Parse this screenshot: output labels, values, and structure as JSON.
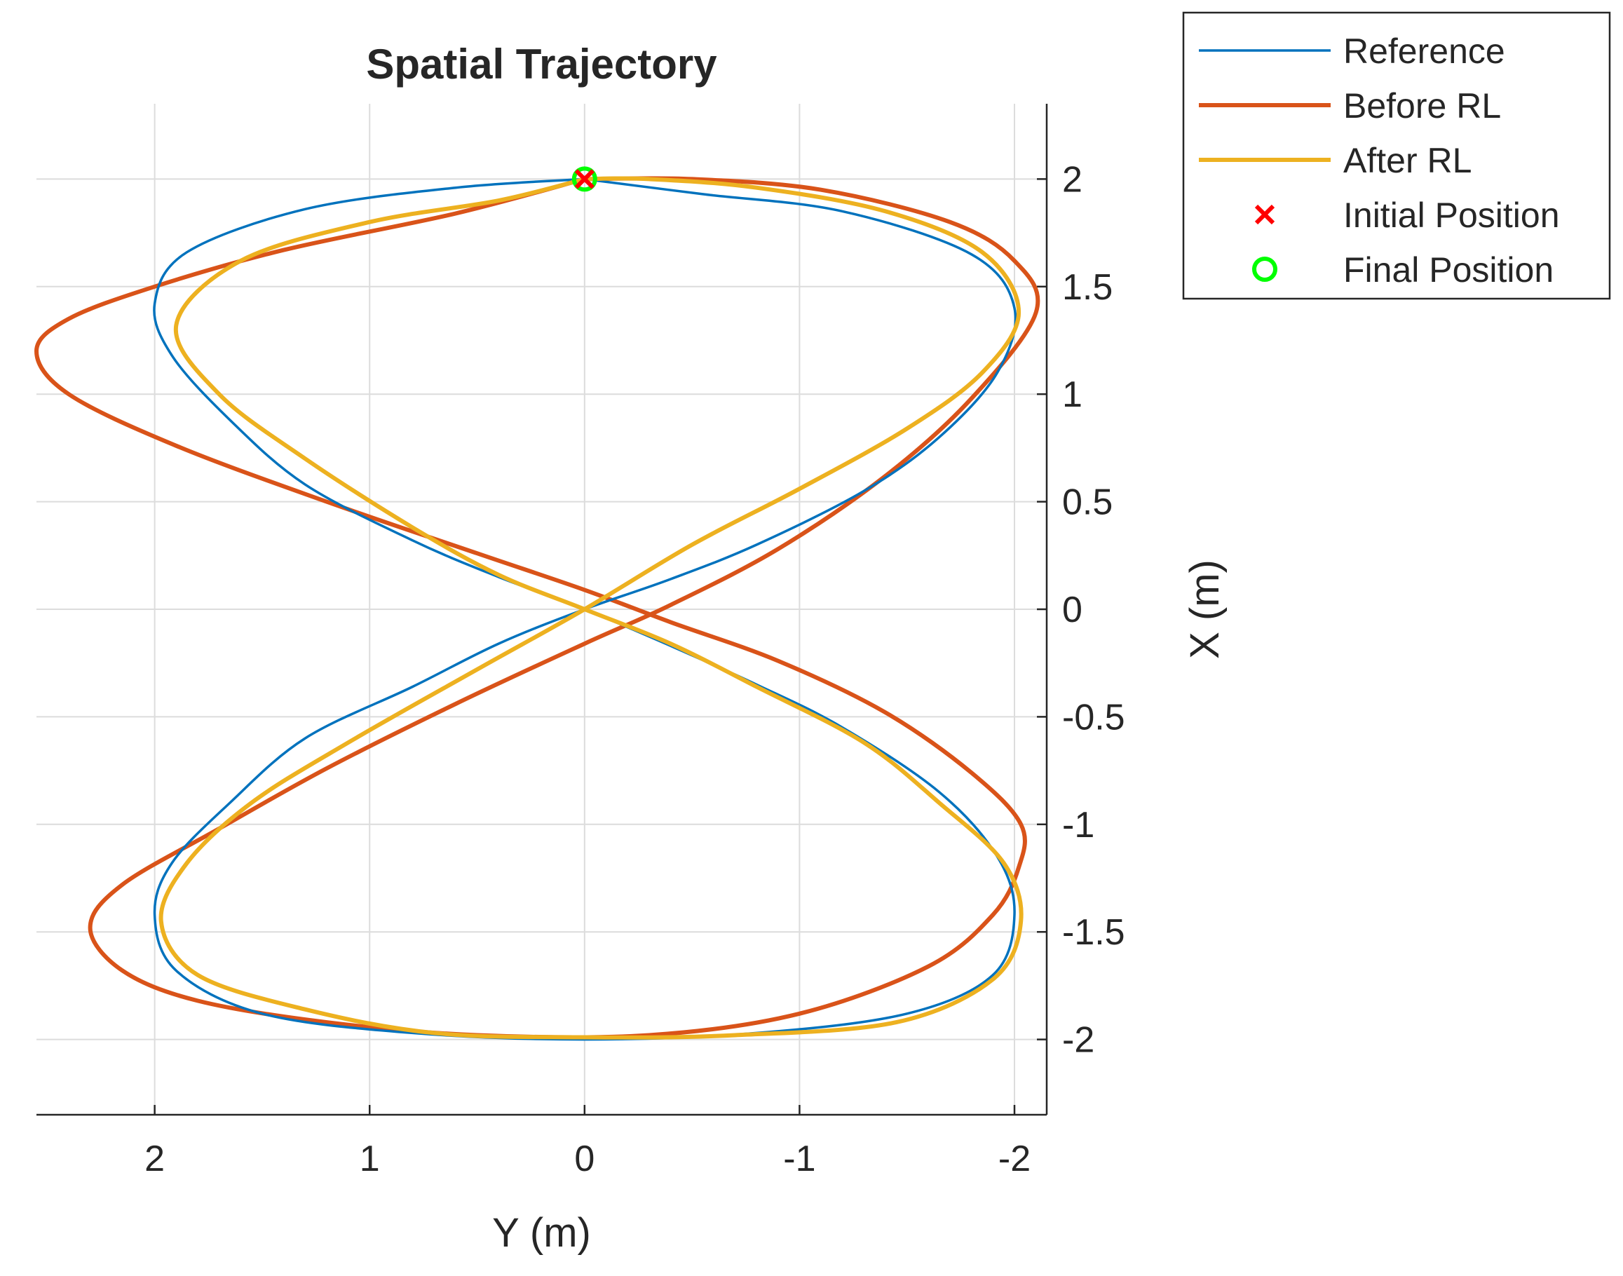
{
  "chart_data": {
    "type": "line",
    "title": "Spatial Trajectory",
    "xlabel": "Y (m)",
    "ylabel": "X (m)",
    "x_axis_reversed": true,
    "y_axis_location": "right",
    "xlim": [
      2.55,
      -2.15
    ],
    "ylim": [
      -2.35,
      2.35
    ],
    "xticks": [
      2,
      1,
      0,
      -1,
      -2
    ],
    "xtick_labels": [
      "2",
      "1",
      "0",
      "-1",
      "-2"
    ],
    "yticks": [
      2,
      1.5,
      1,
      0.5,
      0,
      -0.5,
      -1,
      -1.5,
      -2
    ],
    "ytick_labels": [
      "2",
      "1.5",
      "1",
      "0.5",
      "0",
      "-0.5",
      "-1",
      "-1.5",
      "-2"
    ],
    "grid": true,
    "legend": "outside-top-right",
    "series": [
      {
        "name": "Reference",
        "color": "#0072BD",
        "style": "line",
        "points": [
          [
            0.0,
            2.0
          ],
          [
            -0.55,
            1.93
          ],
          [
            -1.2,
            1.85
          ],
          [
            -1.8,
            1.65
          ],
          [
            -2.0,
            1.4
          ],
          [
            -1.92,
            1.1
          ],
          [
            -1.65,
            0.8
          ],
          [
            -1.3,
            0.55
          ],
          [
            -0.8,
            0.3
          ],
          [
            -0.4,
            0.14
          ],
          [
            0.0,
            0.0
          ],
          [
            0.4,
            -0.16
          ],
          [
            0.8,
            -0.36
          ],
          [
            1.3,
            -0.6
          ],
          [
            1.65,
            -0.9
          ],
          [
            1.92,
            -1.18
          ],
          [
            2.0,
            -1.42
          ],
          [
            1.9,
            -1.68
          ],
          [
            1.5,
            -1.88
          ],
          [
            0.8,
            -1.97
          ],
          [
            0.0,
            -2.0
          ],
          [
            -0.8,
            -1.97
          ],
          [
            -1.5,
            -1.88
          ],
          [
            -1.9,
            -1.7
          ],
          [
            -2.0,
            -1.42
          ],
          [
            -1.92,
            -1.15
          ],
          [
            -1.65,
            -0.85
          ],
          [
            -1.2,
            -0.55
          ],
          [
            -0.8,
            -0.35
          ],
          [
            -0.4,
            -0.17
          ],
          [
            0.0,
            0.0
          ],
          [
            0.4,
            0.15
          ],
          [
            0.8,
            0.32
          ],
          [
            1.3,
            0.58
          ],
          [
            1.65,
            0.88
          ],
          [
            1.92,
            1.18
          ],
          [
            2.0,
            1.42
          ],
          [
            1.85,
            1.66
          ],
          [
            1.3,
            1.86
          ],
          [
            0.6,
            1.96
          ],
          [
            0.0,
            2.0
          ]
        ]
      },
      {
        "name": "Before RL",
        "color": "#D95319",
        "style": "line",
        "points": [
          [
            0.0,
            2.0
          ],
          [
            0.6,
            1.84
          ],
          [
            1.4,
            1.67
          ],
          [
            2.0,
            1.5
          ],
          [
            2.4,
            1.35
          ],
          [
            2.55,
            1.2
          ],
          [
            2.4,
            1.0
          ],
          [
            1.9,
            0.76
          ],
          [
            1.2,
            0.5
          ],
          [
            0.5,
            0.26
          ],
          [
            0.0,
            0.09
          ],
          [
            -0.4,
            -0.06
          ],
          [
            -0.9,
            -0.24
          ],
          [
            -1.4,
            -0.48
          ],
          [
            -1.8,
            -0.76
          ],
          [
            -2.03,
            -1.0
          ],
          [
            -2.02,
            -1.2
          ],
          [
            -1.9,
            -1.42
          ],
          [
            -1.6,
            -1.66
          ],
          [
            -1.0,
            -1.88
          ],
          [
            -0.3,
            -1.98
          ],
          [
            0.5,
            -1.98
          ],
          [
            1.2,
            -1.92
          ],
          [
            1.8,
            -1.82
          ],
          [
            2.15,
            -1.68
          ],
          [
            2.3,
            -1.48
          ],
          [
            2.15,
            -1.28
          ],
          [
            1.7,
            -1.02
          ],
          [
            1.2,
            -0.74
          ],
          [
            0.6,
            -0.44
          ],
          [
            0.0,
            -0.16
          ],
          [
            -0.4,
            0.02
          ],
          [
            -0.9,
            0.28
          ],
          [
            -1.4,
            0.62
          ],
          [
            -1.8,
            0.98
          ],
          [
            -2.1,
            1.38
          ],
          [
            -2.0,
            1.62
          ],
          [
            -1.7,
            1.8
          ],
          [
            -1.1,
            1.95
          ],
          [
            -0.5,
            2.0
          ],
          [
            0.0,
            2.0
          ]
        ]
      },
      {
        "name": "After RL",
        "color": "#EDB120",
        "style": "line",
        "points": [
          [
            0.0,
            2.0
          ],
          [
            0.4,
            1.9
          ],
          [
            1.0,
            1.8
          ],
          [
            1.6,
            1.62
          ],
          [
            1.9,
            1.32
          ],
          [
            1.7,
            1.0
          ],
          [
            1.3,
            0.7
          ],
          [
            0.8,
            0.38
          ],
          [
            0.4,
            0.16
          ],
          [
            0.0,
            0.0
          ],
          [
            -0.4,
            -0.16
          ],
          [
            -0.8,
            -0.36
          ],
          [
            -1.3,
            -0.62
          ],
          [
            -1.65,
            -0.9
          ],
          [
            -1.95,
            -1.18
          ],
          [
            -2.03,
            -1.45
          ],
          [
            -1.9,
            -1.72
          ],
          [
            -1.45,
            -1.92
          ],
          [
            -0.7,
            -1.98
          ],
          [
            0.0,
            -1.99
          ],
          [
            0.7,
            -1.97
          ],
          [
            1.3,
            -1.86
          ],
          [
            1.8,
            -1.7
          ],
          [
            1.97,
            -1.45
          ],
          [
            1.85,
            -1.18
          ],
          [
            1.55,
            -0.9
          ],
          [
            1.1,
            -0.62
          ],
          [
            0.5,
            -0.28
          ],
          [
            0.0,
            0.0
          ],
          [
            -0.5,
            0.3
          ],
          [
            -1.0,
            0.56
          ],
          [
            -1.5,
            0.84
          ],
          [
            -1.85,
            1.1
          ],
          [
            -2.02,
            1.38
          ],
          [
            -1.85,
            1.66
          ],
          [
            -1.4,
            1.85
          ],
          [
            -0.8,
            1.96
          ],
          [
            -0.3,
            2.0
          ],
          [
            0.0,
            2.0
          ]
        ]
      },
      {
        "name": "Initial Position",
        "color": "#FF0000",
        "style": "marker-x",
        "points": [
          [
            0.0,
            2.0
          ]
        ]
      },
      {
        "name": "Final Position",
        "color": "#00FF00",
        "style": "marker-circle",
        "points": [
          [
            0.0,
            2.0
          ]
        ]
      }
    ]
  }
}
